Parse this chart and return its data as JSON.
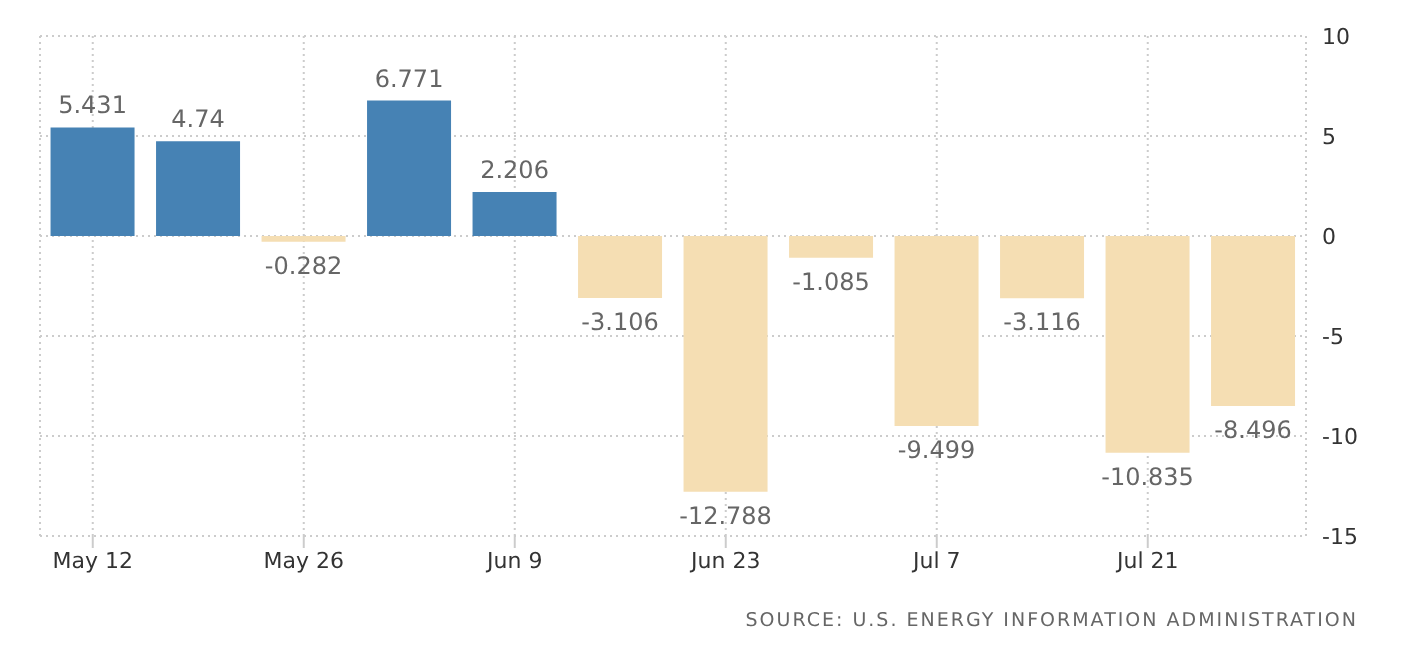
{
  "chart_data": {
    "type": "bar",
    "categories": [
      "May 12",
      null,
      "May 26",
      null,
      "Jun 9",
      null,
      "Jun 23",
      null,
      "Jul 7",
      null,
      "Jul 21",
      null
    ],
    "values": [
      5.431,
      4.74,
      -0.282,
      6.771,
      2.206,
      -3.106,
      -12.788,
      -1.085,
      -9.499,
      -3.116,
      -10.835,
      -8.496
    ],
    "colors": [
      "#4682b4",
      "#4682b4",
      "#f5deb3",
      "#4682b4",
      "#4682b4",
      "#f5deb3",
      "#f5deb3",
      "#f5deb3",
      "#f5deb3",
      "#f5deb3",
      "#f5deb3",
      "#f5deb3"
    ],
    "ylim": [
      -15,
      10
    ],
    "yticks": [
      -15,
      -10,
      -5,
      0,
      5,
      10
    ],
    "grid": true,
    "data_labels": true,
    "legend": false,
    "annotations": [
      "SOURCE: U.S. ENERGY INFORMATION ADMINISTRATION"
    ]
  }
}
